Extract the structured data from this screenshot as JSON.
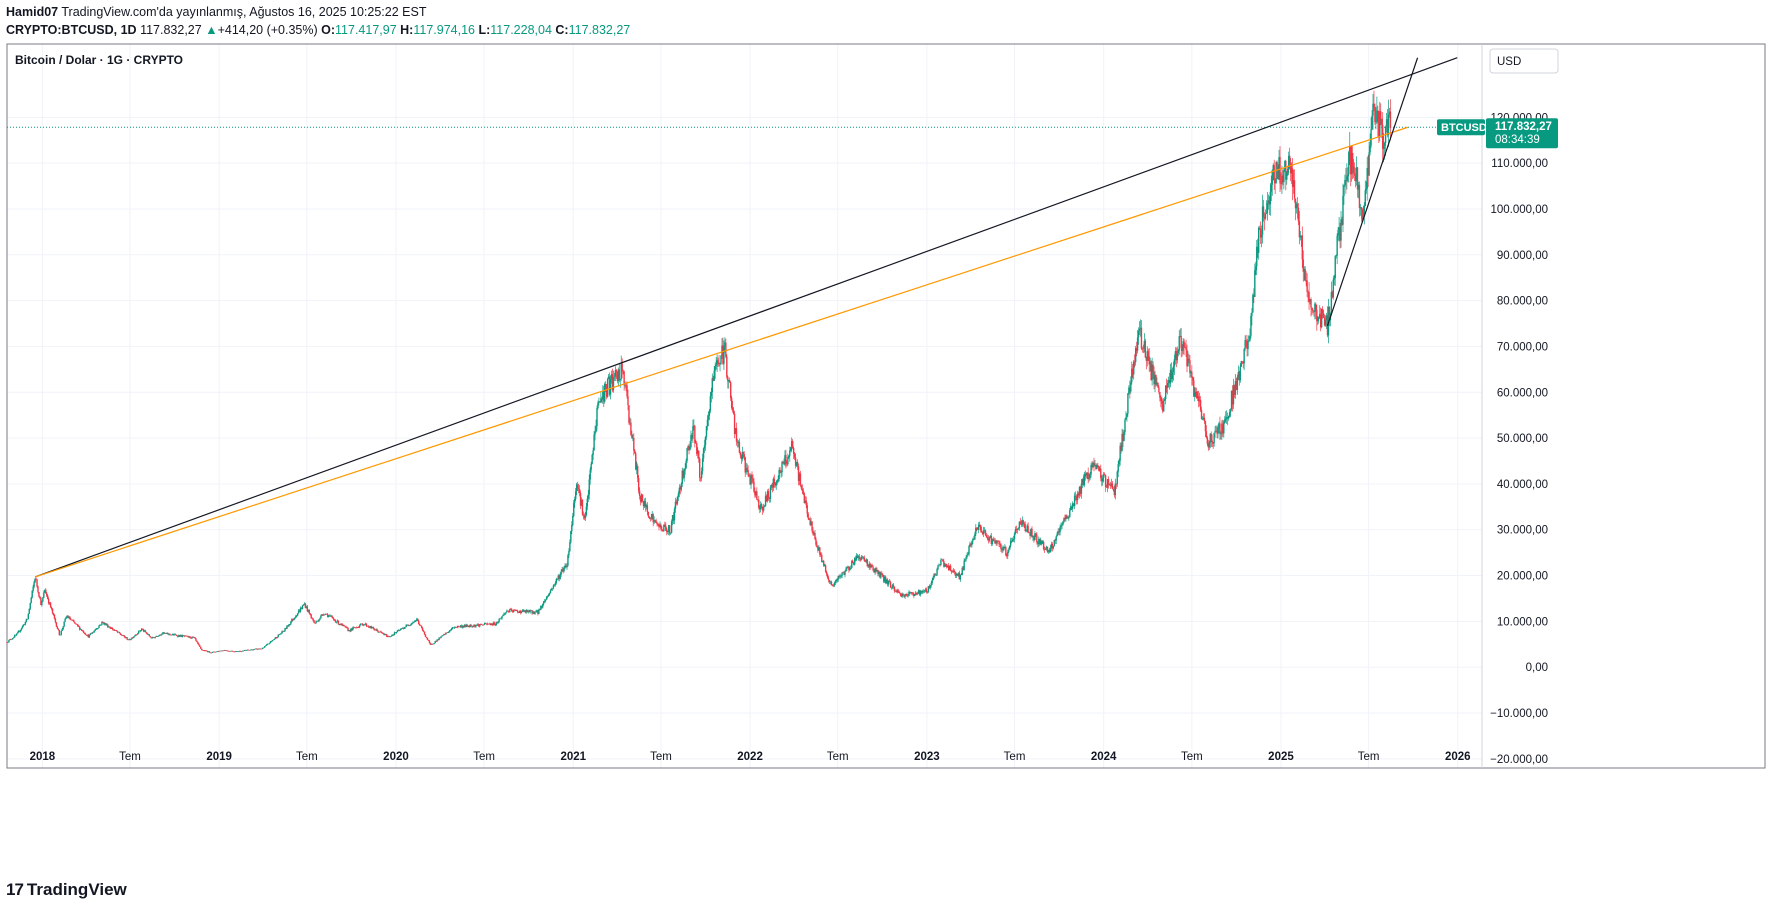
{
  "header": {
    "publisher": "Hamid07",
    "published_line": "TradingView.com'da yayınlanmış, Ağustos 16, 2025 10:25:22 EST",
    "symbol": "CRYPTO:BTCUSD, 1D",
    "last": "117.832,27",
    "change_arrow": "▲",
    "change": "+414,20 (+0.35%)",
    "o_label": "O:",
    "o_val": "117.417,97",
    "h_label": "H:",
    "h_val": "117.974,16",
    "l_label": "L:",
    "l_val": "117.228,04",
    "c_label": "C:",
    "c_val": "117.832,27"
  },
  "pane_title": "Bitcoin / Dolar · 1G · CRYPTO",
  "currency_button": "USD",
  "price_tag": {
    "symbol": "BTCUSD",
    "price": "117.832,27",
    "countdown": "08:34:39"
  },
  "brand": {
    "logo": "17",
    "name": "TradingView"
  },
  "colors": {
    "up": "#089981",
    "down": "#f23645",
    "accent": "#089981",
    "orange_line": "#ff9800",
    "black_line": "#131722"
  },
  "chart_data": {
    "type": "candlestick",
    "title": "Bitcoin / Dolar · 1G · CRYPTO",
    "currency": "USD",
    "ylim": [
      -22000,
      136000
    ],
    "y_ticks": [
      -20000,
      -10000,
      0,
      10000,
      20000,
      30000,
      40000,
      50000,
      60000,
      70000,
      80000,
      90000,
      100000,
      110000,
      120000
    ],
    "y_tick_labels": [
      "−20.000,00",
      "−10.000,00",
      "0,00",
      "10.000,00",
      "20.000,00",
      "30.000,00",
      "40.000,00",
      "50.000,00",
      "60.000,00",
      "70.000,00",
      "80.000,00",
      "90.000,00",
      "100.000,00",
      "110.000,00",
      "120.000,00"
    ],
    "x_ticks": [
      "2018-01-01",
      "2018-07-01",
      "2019-01-01",
      "2019-07-01",
      "2020-01-01",
      "2020-07-01",
      "2021-01-01",
      "2021-07-01",
      "2022-01-01",
      "2022-07-01",
      "2023-01-01",
      "2023-07-01",
      "2024-01-01",
      "2024-07-01",
      "2025-01-01",
      "2025-07-01",
      "2026-01-01"
    ],
    "x_tick_labels": [
      "2018",
      "Tem",
      "2019",
      "Tem",
      "2020",
      "Tem",
      "2021",
      "Tem",
      "2022",
      "Tem",
      "2023",
      "Tem",
      "2024",
      "Tem",
      "2025",
      "Tem",
      "2026"
    ],
    "x_range": [
      "2017-10-20",
      "2026-02-20"
    ],
    "grid": true,
    "last_price": 117832.27,
    "price_path": [
      [
        "2017-10-20",
        5500
      ],
      [
        "2017-11-10",
        7200
      ],
      [
        "2017-12-01",
        10500
      ],
      [
        "2017-12-17",
        19700
      ],
      [
        "2017-12-30",
        13500
      ],
      [
        "2018-01-06",
        17000
      ],
      [
        "2018-02-06",
        6900
      ],
      [
        "2018-02-20",
        11200
      ],
      [
        "2018-04-06",
        6700
      ],
      [
        "2018-05-05",
        9800
      ],
      [
        "2018-06-29",
        5900
      ],
      [
        "2018-07-25",
        8300
      ],
      [
        "2018-08-15",
        6300
      ],
      [
        "2018-09-05",
        7400
      ],
      [
        "2018-11-10",
        6400
      ],
      [
        "2018-11-25",
        3800
      ],
      [
        "2018-12-15",
        3200
      ],
      [
        "2019-01-10",
        3700
      ],
      [
        "2019-02-05",
        3400
      ],
      [
        "2019-04-01",
        4100
      ],
      [
        "2019-05-15",
        8000
      ],
      [
        "2019-06-26",
        13800
      ],
      [
        "2019-07-17",
        9500
      ],
      [
        "2019-08-06",
        11900
      ],
      [
        "2019-09-26",
        8000
      ],
      [
        "2019-10-26",
        9500
      ],
      [
        "2019-12-17",
        6600
      ],
      [
        "2020-02-13",
        10400
      ],
      [
        "2020-03-12",
        4800
      ],
      [
        "2020-05-01",
        8800
      ],
      [
        "2020-07-25",
        9500
      ],
      [
        "2020-08-17",
        12300
      ],
      [
        "2020-10-20",
        12000
      ],
      [
        "2020-12-20",
        23000
      ],
      [
        "2021-01-08",
        41000
      ],
      [
        "2021-01-25",
        31500
      ],
      [
        "2021-02-21",
        57500
      ],
      [
        "2021-03-13",
        61200
      ],
      [
        "2021-04-14",
        64500
      ],
      [
        "2021-05-19",
        37000
      ],
      [
        "2021-06-22",
        31000
      ],
      [
        "2021-07-20",
        29800
      ],
      [
        "2021-09-06",
        52800
      ],
      [
        "2021-09-21",
        41000
      ],
      [
        "2021-10-20",
        66000
      ],
      [
        "2021-11-10",
        68900
      ],
      [
        "2021-12-04",
        49000
      ],
      [
        "2022-01-24",
        34500
      ],
      [
        "2022-03-28",
        47700
      ],
      [
        "2022-05-12",
        28700
      ],
      [
        "2022-06-18",
        17600
      ],
      [
        "2022-08-14",
        24400
      ],
      [
        "2022-11-09",
        15700
      ],
      [
        "2022-12-31",
        16500
      ],
      [
        "2023-01-31",
        23100
      ],
      [
        "2023-03-10",
        19700
      ],
      [
        "2023-04-14",
        30500
      ],
      [
        "2023-06-15",
        25000
      ],
      [
        "2023-07-13",
        31800
      ],
      [
        "2023-09-11",
        25100
      ],
      [
        "2023-10-24",
        34500
      ],
      [
        "2023-12-08",
        44000
      ],
      [
        "2024-01-23",
        38500
      ],
      [
        "2024-03-14",
        73700
      ],
      [
        "2024-05-01",
        56500
      ],
      [
        "2024-06-07",
        71900
      ],
      [
        "2024-08-05",
        49100
      ],
      [
        "2024-09-06",
        53000
      ],
      [
        "2024-10-29",
        72700
      ],
      [
        "2024-11-13",
        92000
      ],
      [
        "2024-12-17",
        108000
      ],
      [
        "2025-01-20",
        109500
      ],
      [
        "2025-02-28",
        79000
      ],
      [
        "2025-04-07",
        74500
      ],
      [
        "2025-05-22",
        111900
      ],
      [
        "2025-06-22",
        99500
      ],
      [
        "2025-07-14",
        123200
      ],
      [
        "2025-08-02",
        112500
      ],
      [
        "2025-08-14",
        124400
      ],
      [
        "2025-08-16",
        117832
      ]
    ],
    "trendlines": [
      {
        "color": "#131722",
        "from": [
          "2017-12-17",
          19700
        ],
        "to": [
          "2025-12-31",
          133000
        ]
      },
      {
        "color": "#ff9800",
        "from": [
          "2017-12-17",
          19700
        ],
        "to": [
          "2025-09-20",
          117832
        ]
      },
      {
        "color": "#131722",
        "from": [
          "2025-04-07",
          74500
        ],
        "to": [
          "2025-10-10",
          133000
        ]
      }
    ]
  }
}
